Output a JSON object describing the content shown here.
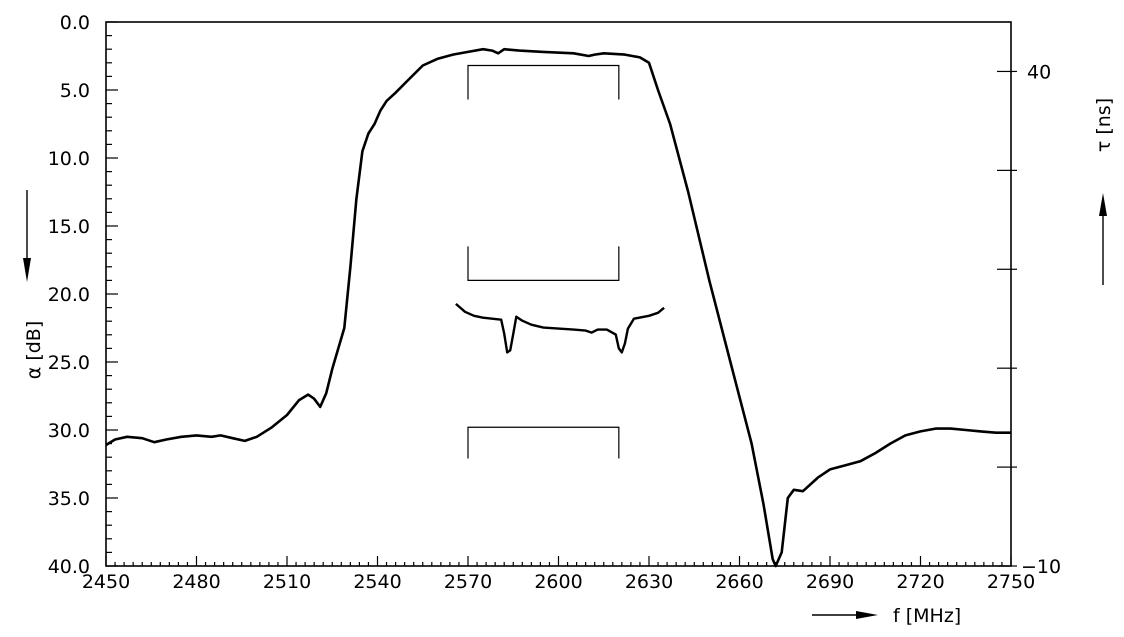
{
  "chart_data": {
    "type": "line",
    "title": "",
    "xlabel": "f [MHz]",
    "ylabel_left": "α [dB]",
    "ylabel_right": "τ [ns]",
    "xlim": [
      2450,
      2750
    ],
    "ylim_left": [
      0,
      40
    ],
    "ylim_right": [
      -10,
      45
    ],
    "left_axis_inverted": true,
    "grid": false,
    "x_tick_labels": [
      "2450",
      "2480",
      "2510",
      "2540",
      "2570",
      "2600",
      "2630",
      "2660",
      "2690",
      "2720",
      "2750"
    ],
    "y_left_tick_labels": [
      "0.0",
      "5.0",
      "10.0",
      "15.0",
      "20.0",
      "25.0",
      "30.0",
      "35.0",
      "40.0"
    ],
    "y_right_tick_labels": [
      "40",
      "−10"
    ],
    "series": [
      {
        "axis": "left",
        "points": [
          [
            2450,
            31.1
          ],
          [
            2453,
            30.7
          ],
          [
            2457,
            30.5
          ],
          [
            2462,
            30.6
          ],
          [
            2466,
            30.9
          ],
          [
            2470,
            30.7
          ],
          [
            2475,
            30.5
          ],
          [
            2480,
            30.4
          ],
          [
            2485,
            30.5
          ],
          [
            2488,
            30.4
          ],
          [
            2492,
            30.6
          ],
          [
            2496,
            30.8
          ],
          [
            2500,
            30.5
          ],
          [
            2505,
            29.8
          ],
          [
            2510,
            28.9
          ],
          [
            2514,
            27.8
          ],
          [
            2517,
            27.4
          ],
          [
            2519,
            27.7
          ],
          [
            2521,
            28.3
          ],
          [
            2523,
            27.3
          ],
          [
            2525,
            25.5
          ],
          [
            2527,
            24.0
          ],
          [
            2529,
            22.5
          ],
          [
            2531,
            18.0
          ],
          [
            2533,
            13.0
          ],
          [
            2535,
            9.5
          ],
          [
            2537,
            8.2
          ],
          [
            2539,
            7.5
          ],
          [
            2541,
            6.5
          ],
          [
            2543,
            5.8
          ],
          [
            2546,
            5.2
          ],
          [
            2550,
            4.3
          ],
          [
            2555,
            3.2
          ],
          [
            2560,
            2.7
          ],
          [
            2565,
            2.4
          ],
          [
            2570,
            2.2
          ],
          [
            2575,
            2.0
          ],
          [
            2578,
            2.1
          ],
          [
            2580,
            2.3
          ],
          [
            2582,
            2.0
          ],
          [
            2587,
            2.1
          ],
          [
            2595,
            2.2
          ],
          [
            2605,
            2.3
          ],
          [
            2610,
            2.5
          ],
          [
            2612,
            2.4
          ],
          [
            2615,
            2.3
          ],
          [
            2622,
            2.4
          ],
          [
            2627,
            2.6
          ],
          [
            2630,
            3.0
          ],
          [
            2633,
            5.0
          ],
          [
            2637,
            7.5
          ],
          [
            2643,
            12.5
          ],
          [
            2650,
            19.0
          ],
          [
            2657,
            25.0
          ],
          [
            2664,
            31.0
          ],
          [
            2668,
            35.5
          ],
          [
            2671,
            39.5
          ],
          [
            2672,
            40.0
          ],
          [
            2674,
            39.0
          ],
          [
            2676,
            35.0
          ],
          [
            2678,
            34.4
          ],
          [
            2681,
            34.5
          ],
          [
            2686,
            33.5
          ],
          [
            2690,
            32.9
          ],
          [
            2695,
            32.6
          ],
          [
            2700,
            32.3
          ],
          [
            2705,
            31.7
          ],
          [
            2710,
            31.0
          ],
          [
            2715,
            30.4
          ],
          [
            2720,
            30.1
          ],
          [
            2725,
            29.9
          ],
          [
            2730,
            29.9
          ],
          [
            2735,
            30.0
          ],
          [
            2740,
            30.1
          ],
          [
            2745,
            30.2
          ],
          [
            2750,
            30.2
          ]
        ]
      },
      {
        "axis": "right",
        "points": [
          [
            2566,
            16.5
          ],
          [
            2569,
            15.7
          ],
          [
            2572,
            15.3
          ],
          [
            2575,
            15.1
          ],
          [
            2578,
            15.0
          ],
          [
            2581,
            14.9
          ],
          [
            2582,
            13.5
          ],
          [
            2583,
            11.6
          ],
          [
            2584,
            11.8
          ],
          [
            2585,
            13.5
          ],
          [
            2586,
            15.2
          ],
          [
            2588,
            14.8
          ],
          [
            2591,
            14.4
          ],
          [
            2595,
            14.1
          ],
          [
            2600,
            14.0
          ],
          [
            2605,
            13.9
          ],
          [
            2609,
            13.8
          ],
          [
            2611,
            13.6
          ],
          [
            2613,
            13.9
          ],
          [
            2616,
            13.9
          ],
          [
            2619,
            13.4
          ],
          [
            2620,
            12.0
          ],
          [
            2621,
            11.6
          ],
          [
            2622,
            12.5
          ],
          [
            2623,
            14.0
          ],
          [
            2625,
            15.0
          ],
          [
            2630,
            15.3
          ],
          [
            2633,
            15.6
          ],
          [
            2635,
            16.1
          ]
        ]
      }
    ],
    "annotations": [
      {
        "type": "bracket",
        "axis": "left",
        "x0": 2570,
        "x1": 2620,
        "y_line": 3.2,
        "y_tip": 5.7,
        "direction": "down"
      },
      {
        "type": "bracket",
        "axis": "left",
        "x0": 2570,
        "x1": 2620,
        "y_line": 19.0,
        "y_tip": 16.5,
        "direction": "up"
      },
      {
        "type": "bracket",
        "axis": "left",
        "x0": 2570,
        "x1": 2620,
        "y_line": 29.8,
        "y_tip": 32.1,
        "direction": "down"
      }
    ]
  }
}
